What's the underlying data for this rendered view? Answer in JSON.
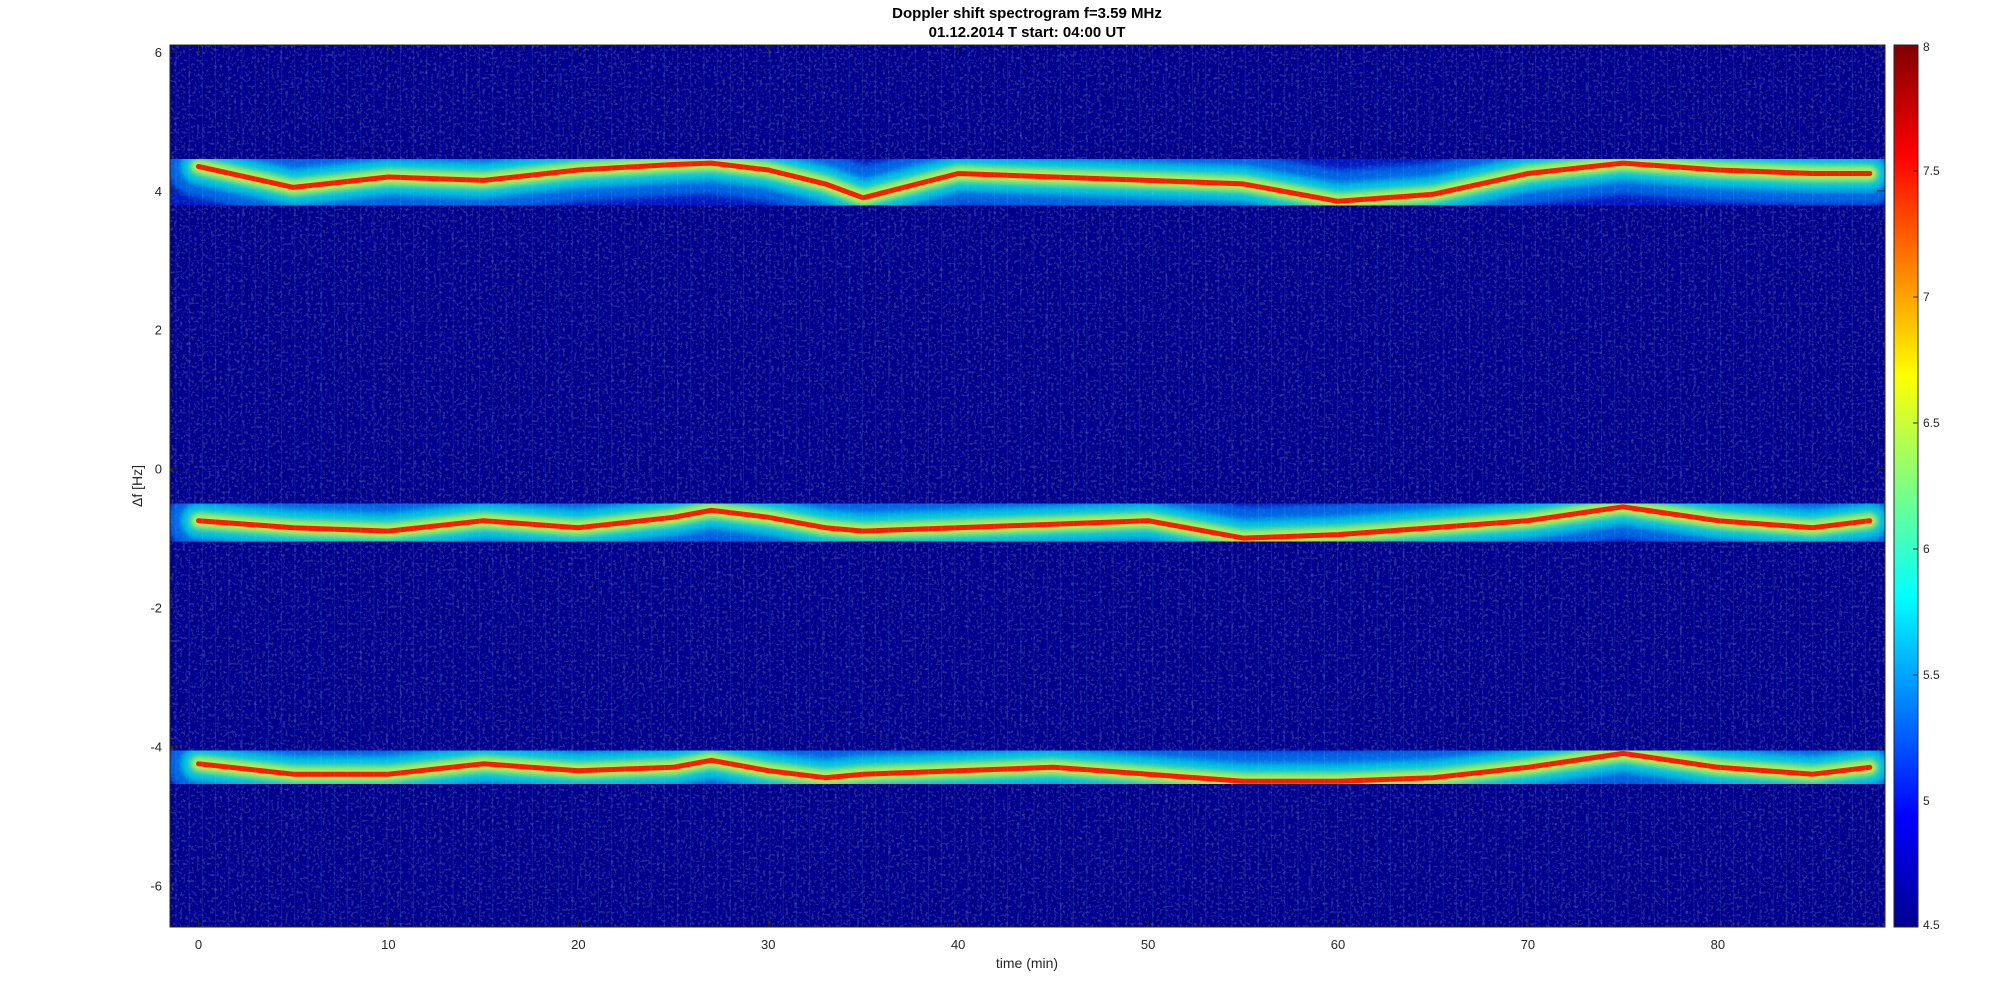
{
  "chart_data": {
    "type": "heatmap",
    "title": "Doppler shift spectrogram f=3.59 MHz",
    "subtitle": "01.12.2014   T start: 04:00 UT",
    "xlabel": "time (min)",
    "ylabel": "Δf [Hz]",
    "xlim": [
      -1.5,
      88.8
    ],
    "ylim": [
      -6.6,
      6.1
    ],
    "x_ticks": [
      "0",
      "10",
      "20",
      "30",
      "40",
      "50",
      "60",
      "70",
      "80"
    ],
    "x_tick_values": [
      0,
      10,
      20,
      30,
      40,
      50,
      60,
      70,
      80
    ],
    "y_ticks": [
      "6",
      "4",
      "2",
      "0",
      "-2",
      "-4",
      "-6"
    ],
    "y_tick_values": [
      6,
      4,
      2,
      0,
      -2,
      -4,
      -6
    ],
    "grid": false,
    "colormap": "jet",
    "colorbar": {
      "range": [
        4.5,
        8
      ],
      "ticks": [
        "8",
        "7.5",
        "7",
        "6.5",
        "6",
        "5.5",
        "5",
        "4.5"
      ],
      "tick_values": [
        8,
        7.5,
        7,
        6.5,
        6,
        5.5,
        5,
        4.5
      ]
    },
    "series": [
      {
        "x": [
          0,
          5,
          10,
          15,
          20,
          25,
          27,
          30,
          33,
          35,
          40,
          45,
          50,
          55,
          60,
          65,
          70,
          75,
          80,
          85,
          88
        ],
        "y": [
          4.35,
          4.05,
          4.2,
          4.15,
          4.3,
          4.38,
          4.4,
          4.3,
          4.1,
          3.9,
          4.25,
          4.2,
          4.15,
          4.1,
          3.85,
          3.95,
          4.25,
          4.4,
          4.3,
          4.25,
          4.25
        ]
      },
      {
        "x": [
          0,
          5,
          10,
          15,
          20,
          25,
          27,
          30,
          33,
          35,
          40,
          45,
          50,
          55,
          60,
          65,
          70,
          75,
          80,
          85,
          88
        ],
        "y": [
          -0.75,
          -0.85,
          -0.9,
          -0.75,
          -0.85,
          -0.7,
          -0.6,
          -0.7,
          -0.85,
          -0.9,
          -0.85,
          -0.8,
          -0.75,
          -1.0,
          -0.95,
          -0.85,
          -0.75,
          -0.55,
          -0.75,
          -0.85,
          -0.75
        ]
      },
      {
        "x": [
          0,
          5,
          10,
          15,
          20,
          25,
          27,
          30,
          33,
          35,
          40,
          45,
          50,
          55,
          60,
          65,
          70,
          75,
          80,
          85,
          88
        ],
        "y": [
          -4.25,
          -4.4,
          -4.4,
          -4.25,
          -4.35,
          -4.3,
          -4.2,
          -4.35,
          -4.45,
          -4.4,
          -4.35,
          -4.3,
          -4.4,
          -4.5,
          -4.5,
          -4.45,
          -4.3,
          -4.1,
          -4.3,
          -4.4,
          -4.3
        ]
      }
    ]
  }
}
